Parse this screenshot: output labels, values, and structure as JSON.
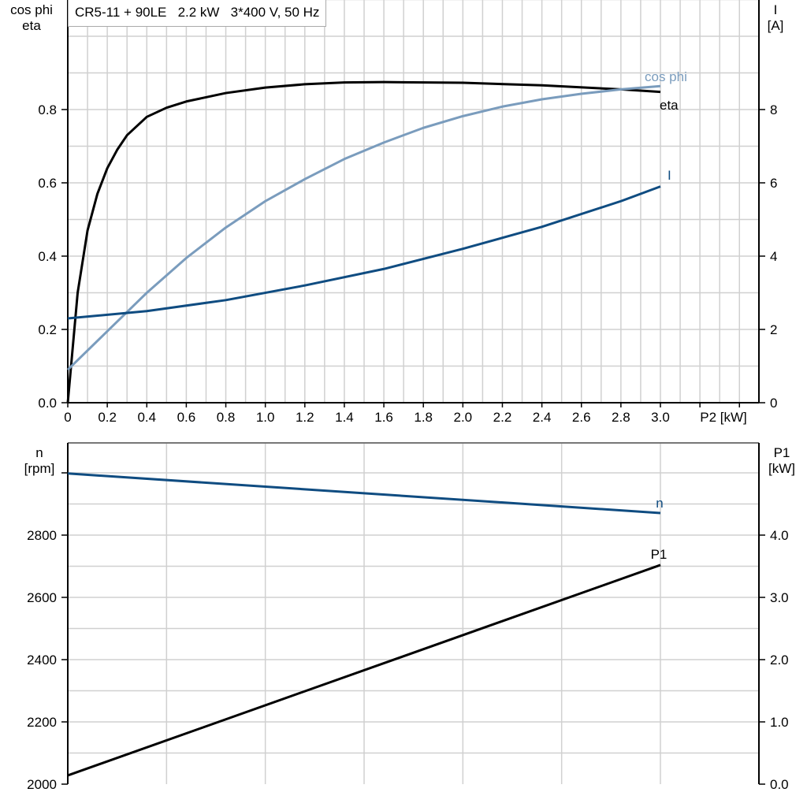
{
  "title": "CR5-11 + 90LE   2.2 kW   3*400 V, 50 Hz",
  "chart_data": [
    {
      "type": "line",
      "xlabel": "P2 [kW]",
      "ylabel_left": [
        "cos phi",
        "eta"
      ],
      "ylabel_right": [
        "I",
        "[A]"
      ],
      "xlim": [
        0,
        3.5
      ],
      "ylim_left": [
        0,
        1.1
      ],
      "ylim_right": [
        0,
        11
      ],
      "grid": true,
      "x_ticks": [
        "0",
        "0.2",
        "0.4",
        "0.6",
        "0.8",
        "1.0",
        "1.2",
        "1.4",
        "1.6",
        "1.8",
        "2.0",
        "2.2",
        "2.4",
        "2.6",
        "2.8",
        "3.0"
      ],
      "y_ticks_left": [
        "0.0",
        "0.2",
        "0.4",
        "0.6",
        "0.8"
      ],
      "y_ticks_right": [
        "0",
        "2",
        "4",
        "6",
        "8"
      ],
      "series": [
        {
          "name": "eta",
          "axis": "left",
          "color": "#000000",
          "x": [
            0,
            0.05,
            0.1,
            0.15,
            0.2,
            0.25,
            0.3,
            0.4,
            0.5,
            0.6,
            0.8,
            1.0,
            1.2,
            1.4,
            1.6,
            2.0,
            2.4,
            2.8,
            3.0
          ],
          "y": [
            0,
            0.3,
            0.47,
            0.57,
            0.64,
            0.69,
            0.73,
            0.78,
            0.805,
            0.822,
            0.845,
            0.86,
            0.869,
            0.874,
            0.875,
            0.873,
            0.866,
            0.855,
            0.848
          ]
        },
        {
          "name": "cos phi",
          "axis": "left",
          "color": "#7a9cbd",
          "x": [
            0,
            0.2,
            0.4,
            0.6,
            0.8,
            1.0,
            1.2,
            1.4,
            1.6,
            1.8,
            2.0,
            2.2,
            2.4,
            2.6,
            2.8,
            3.0
          ],
          "y": [
            0.09,
            0.195,
            0.3,
            0.395,
            0.478,
            0.55,
            0.61,
            0.665,
            0.71,
            0.75,
            0.782,
            0.808,
            0.828,
            0.843,
            0.855,
            0.864
          ]
        },
        {
          "name": "I",
          "axis": "right",
          "color": "#0f4c81",
          "x": [
            0,
            0.4,
            0.8,
            1.2,
            1.6,
            2.0,
            2.4,
            2.8,
            3.0
          ],
          "y": [
            2.3,
            2.5,
            2.8,
            3.2,
            3.65,
            4.2,
            4.8,
            5.5,
            5.9
          ]
        }
      ]
    },
    {
      "type": "line",
      "xlim": [
        0,
        3.5
      ],
      "ylabel_left": [
        "n",
        "[rpm]"
      ],
      "ylabel_right": [
        "P1",
        "[kW]"
      ],
      "ylim_left": [
        2000,
        3096
      ],
      "ylim_right": [
        0,
        5.48
      ],
      "grid": true,
      "y_ticks_left": [
        "2000",
        "2200",
        "2400",
        "2600",
        "2800"
      ],
      "y_ticks_right": [
        "0.0",
        "1.0",
        "2.0",
        "3.0",
        "4.0"
      ],
      "series": [
        {
          "name": "n",
          "axis": "left",
          "color": "#0f4c81",
          "x": [
            0,
            3.0
          ],
          "y": [
            2998,
            2871
          ]
        },
        {
          "name": "P1",
          "axis": "right",
          "color": "#000000",
          "x": [
            0,
            3.0
          ],
          "y": [
            0.14,
            3.52
          ]
        }
      ]
    }
  ]
}
